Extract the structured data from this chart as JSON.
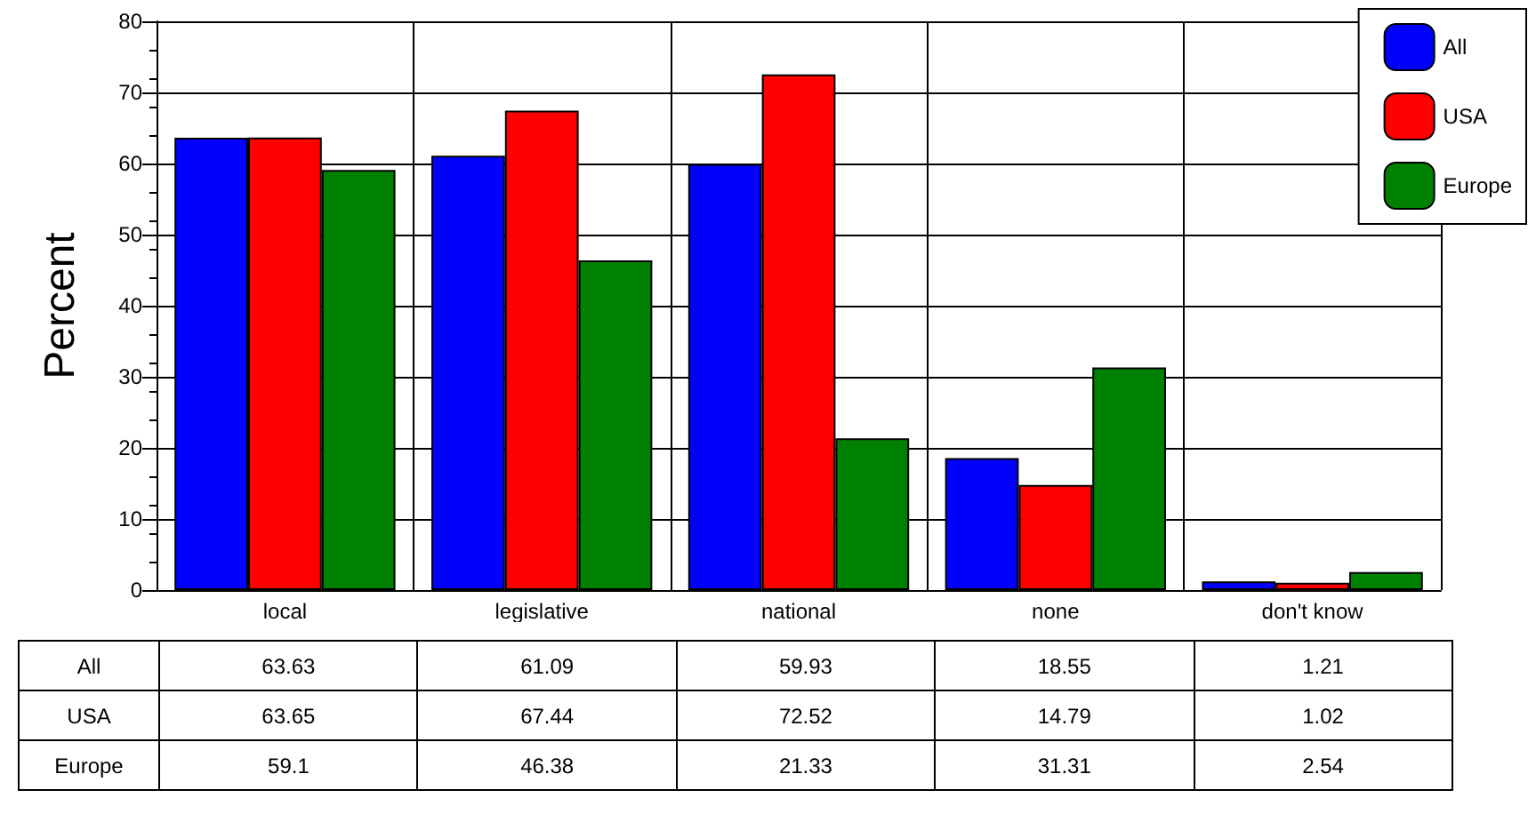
{
  "chart_data": {
    "type": "bar",
    "ylabel": "Percent",
    "categories": [
      "local",
      "legislative",
      "national",
      "none",
      "don't know"
    ],
    "series": [
      {
        "name": "All",
        "color": "#0000ff",
        "values": [
          63.63,
          61.09,
          59.93,
          18.55,
          1.21
        ]
      },
      {
        "name": "USA",
        "color": "#ff0000",
        "values": [
          63.65,
          67.44,
          72.52,
          14.79,
          1.02
        ]
      },
      {
        "name": "Europe",
        "color": "#008000",
        "values": [
          59.1,
          46.38,
          21.33,
          31.31,
          2.54
        ]
      }
    ],
    "ylim": [
      0,
      80
    ],
    "yticks": [
      0,
      10,
      20,
      30,
      40,
      50,
      60,
      70,
      80
    ],
    "grid": true,
    "legend": "top right",
    "data_labels": true
  }
}
